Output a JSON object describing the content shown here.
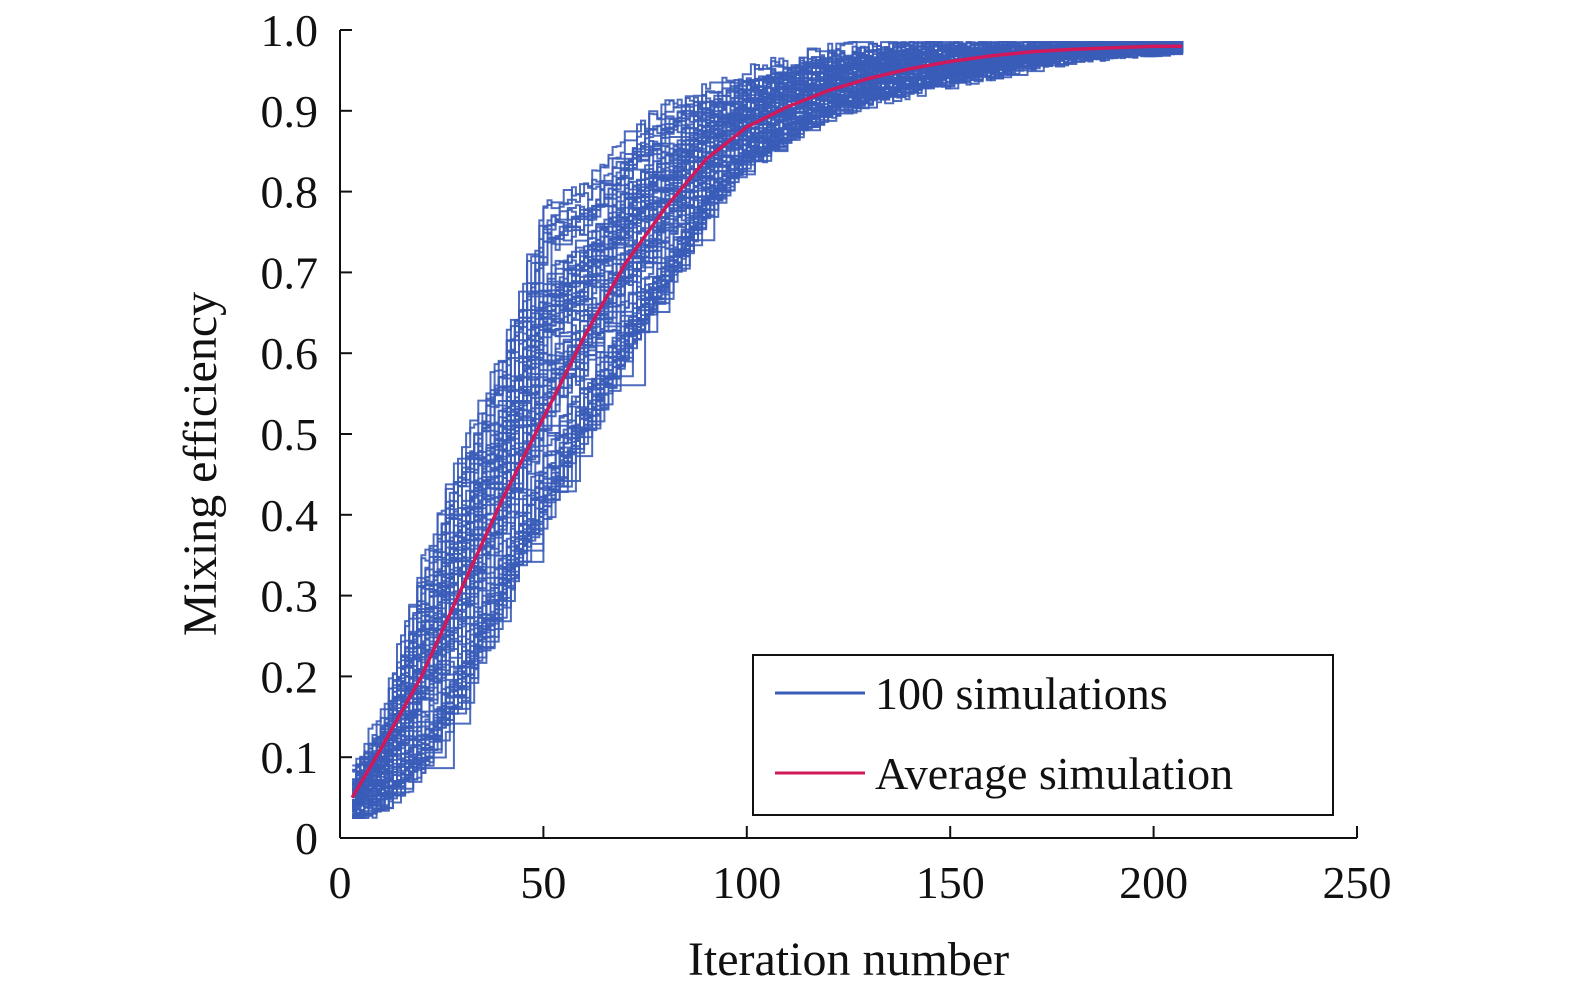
{
  "chart_data": {
    "type": "line",
    "title": "",
    "xlabel": "Iteration number",
    "ylabel": "Mixing efficiency",
    "xlim": [
      0,
      250
    ],
    "ylim": [
      0,
      1.0
    ],
    "x_ticks": [
      0,
      50,
      100,
      150,
      200,
      250
    ],
    "x_tick_labels": [
      "0",
      "50",
      "100",
      "150",
      "200",
      "250"
    ],
    "y_ticks": [
      0,
      0.1,
      0.2,
      0.3,
      0.4,
      0.5,
      0.6,
      0.7,
      0.8,
      0.9,
      1.0
    ],
    "y_tick_labels": [
      "0",
      "0.1",
      "0.2",
      "0.3",
      "0.4",
      "0.5",
      "0.6",
      "0.7",
      "0.8",
      "0.9",
      "1.0"
    ],
    "grid": false,
    "legend_position": "bottom-right",
    "series": [
      {
        "name": "100 simulations",
        "color": "#3a5cb8",
        "note_count": 100,
        "representative_envelope": {
          "x": [
            3,
            10,
            20,
            30,
            40,
            50,
            60,
            70,
            80,
            90,
            100,
            120,
            140,
            160,
            180,
            207
          ],
          "upper": [
            0.07,
            0.14,
            0.33,
            0.48,
            0.6,
            0.78,
            0.8,
            0.86,
            0.9,
            0.92,
            0.94,
            0.97,
            0.98,
            0.98,
            0.98,
            0.98
          ],
          "lower": [
            0.03,
            0.05,
            0.09,
            0.18,
            0.3,
            0.4,
            0.5,
            0.6,
            0.68,
            0.78,
            0.84,
            0.9,
            0.93,
            0.95,
            0.97,
            0.98
          ]
        }
      },
      {
        "name": "Average simulation",
        "color": "#d0185a",
        "x": [
          3,
          10,
          20,
          30,
          40,
          50,
          60,
          70,
          80,
          90,
          100,
          110,
          120,
          130,
          140,
          150,
          160,
          170,
          180,
          190,
          200,
          207
        ],
        "y": [
          0.05,
          0.11,
          0.2,
          0.31,
          0.42,
          0.52,
          0.62,
          0.71,
          0.78,
          0.84,
          0.88,
          0.905,
          0.925,
          0.94,
          0.952,
          0.961,
          0.968,
          0.973,
          0.976,
          0.978,
          0.98,
          0.98
        ]
      }
    ]
  }
}
